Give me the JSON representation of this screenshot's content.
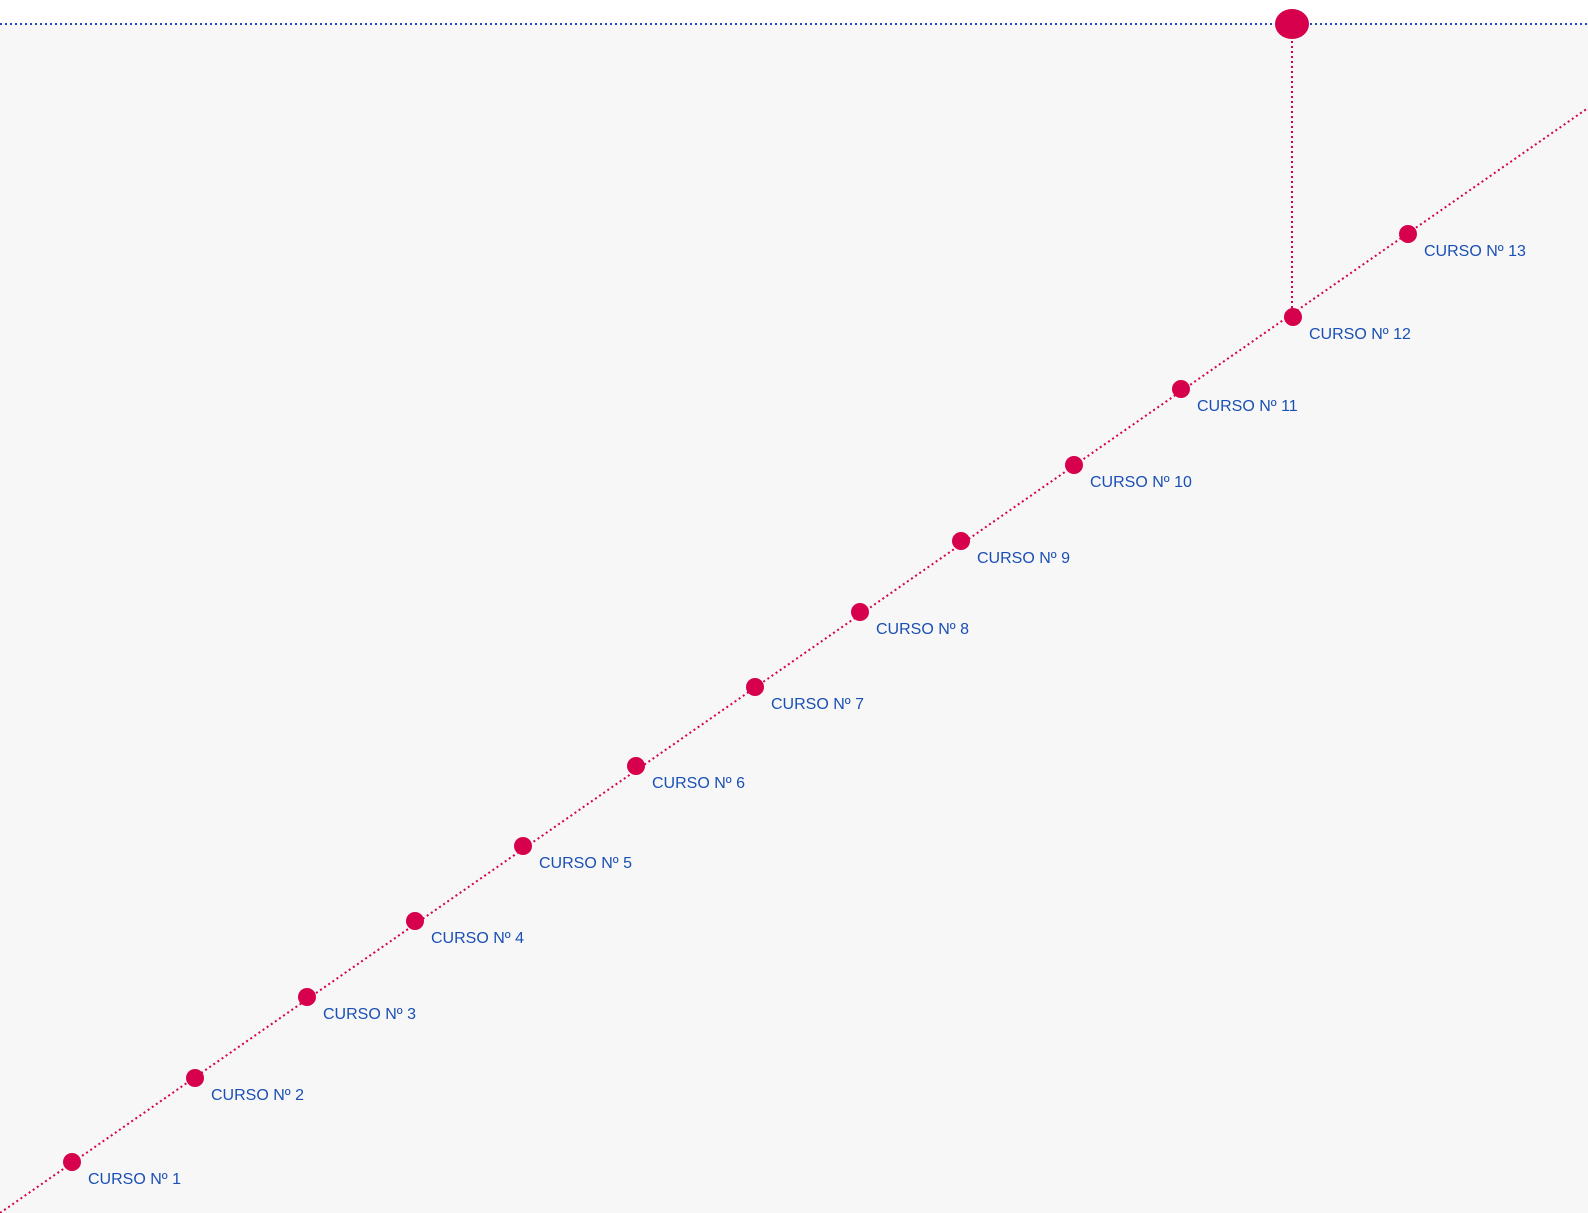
{
  "colors": {
    "accent": "#d6004c",
    "label": "#1a4fb5",
    "top_line": "#2446c4",
    "panel": "#f7f7f7",
    "page": "#ffffff"
  },
  "courses": [
    {
      "label": "CURSO Nº 1"
    },
    {
      "label": "CURSO Nº 2"
    },
    {
      "label": "CURSO Nº 3"
    },
    {
      "label": "CURSO Nº 4"
    },
    {
      "label": "CURSO Nº 5"
    },
    {
      "label": "CURSO Nº 6"
    },
    {
      "label": "CURSO Nº 7"
    },
    {
      "label": "CURSO Nº 8"
    },
    {
      "label": "CURSO Nº 9"
    },
    {
      "label": "CURSO Nº 10"
    },
    {
      "label": "CURSO Nº 11"
    },
    {
      "label": "CURSO Nº 12"
    },
    {
      "label": "CURSO Nº 13"
    }
  ],
  "current_course": "CURSO Nº 12"
}
